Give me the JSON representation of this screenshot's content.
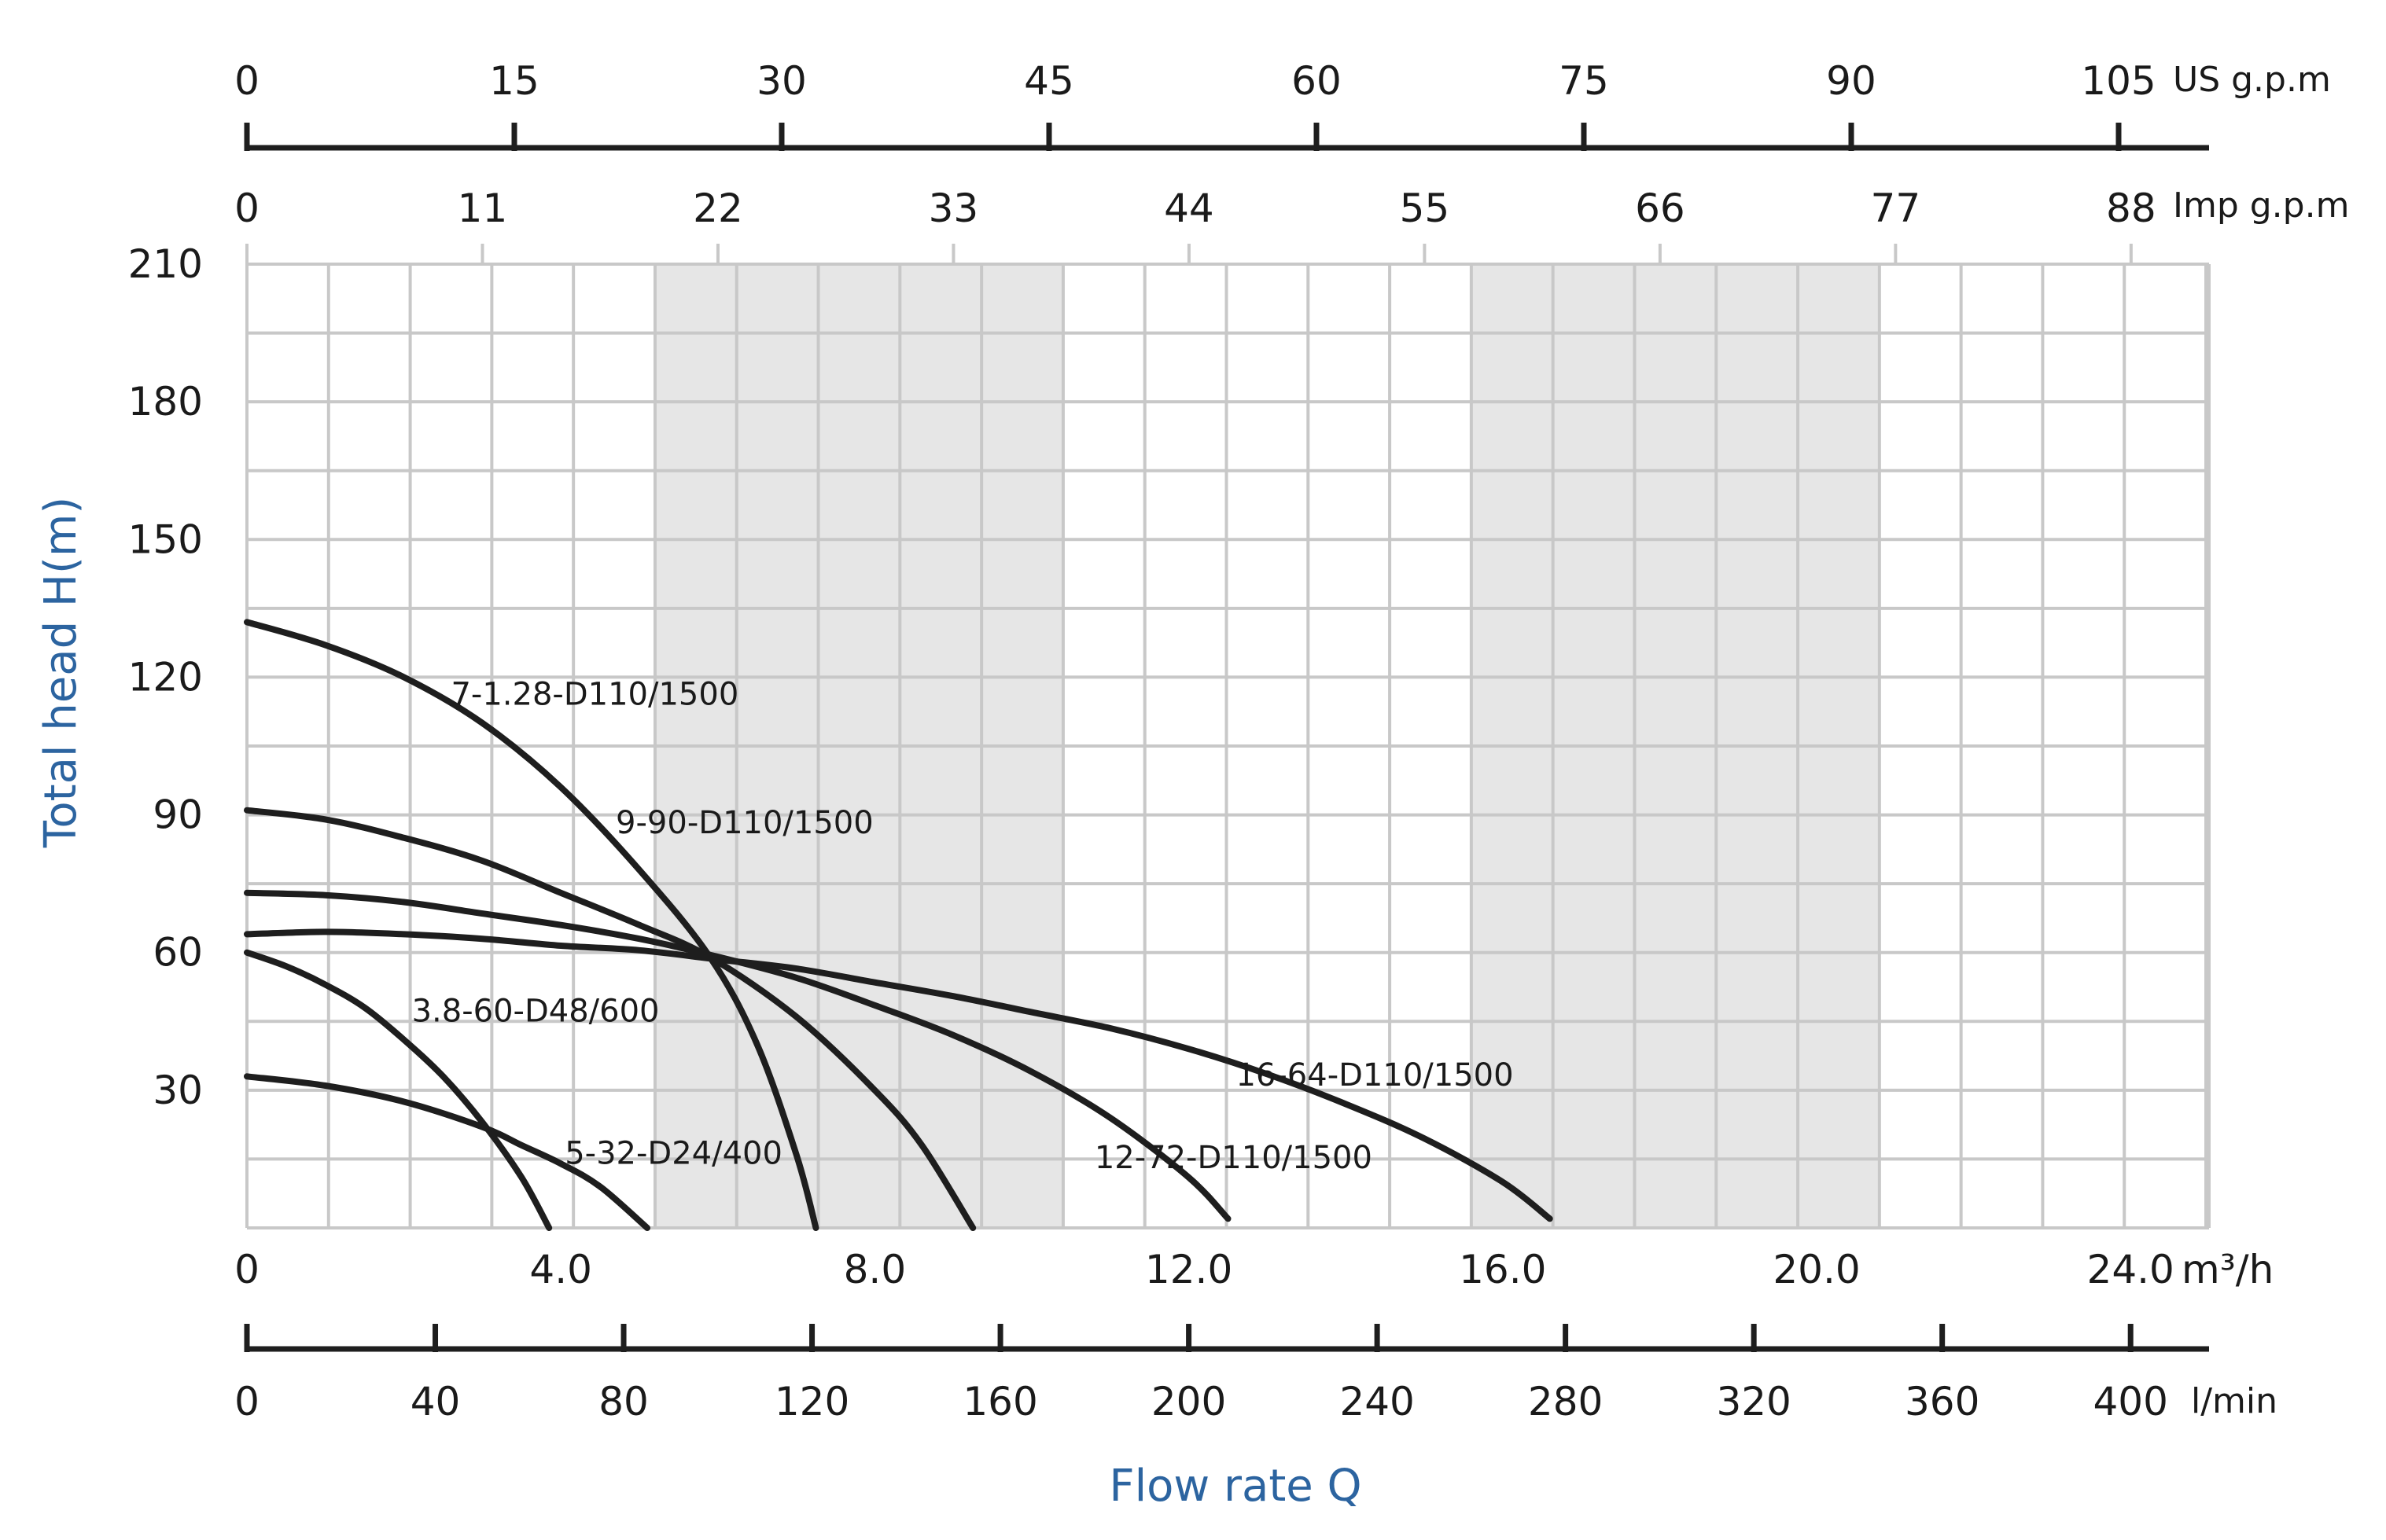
{
  "chart_data": {
    "type": "line",
    "x_unit": "m³/h",
    "xlim": [
      0,
      25
    ],
    "ylim": [
      0,
      210
    ],
    "x_ticks": [
      "0",
      "4.0",
      "8.0",
      "12.0",
      "16.0",
      "20.0",
      "24.0"
    ],
    "x_tick_values": [
      0,
      4,
      8,
      12,
      16,
      20,
      24
    ],
    "y_ticks": [
      "30",
      "60",
      "90",
      "120",
      "150",
      "180",
      "210"
    ],
    "y_tick_values": [
      30,
      60,
      90,
      120,
      150,
      180,
      210
    ],
    "xlabel": "Flow rate Q",
    "ylabel": "Total head H(m)",
    "grid": true,
    "shaded_x_ranges": [
      [
        5.2,
        10.4
      ],
      [
        15.6,
        20.8
      ]
    ],
    "secondary_axes": {
      "us_gpm": {
        "unit": "US g.p.m",
        "ticks": [
          "0",
          "15",
          "30",
          "45",
          "60",
          "75",
          "90",
          "105"
        ],
        "values": [
          0,
          15,
          30,
          45,
          60,
          75,
          90,
          105
        ]
      },
      "imp_gpm": {
        "unit": "Imp g.p.m",
        "ticks": [
          "0",
          "11",
          "22",
          "33",
          "44",
          "55",
          "66",
          "77",
          "88"
        ],
        "values": [
          0,
          11,
          22,
          33,
          44,
          55,
          66,
          77,
          88
        ]
      },
      "l_min": {
        "unit": "l/min",
        "ticks": [
          "0",
          "40",
          "80",
          "120",
          "160",
          "200",
          "240",
          "280",
          "320",
          "360",
          "400"
        ],
        "values": [
          0,
          40,
          80,
          120,
          160,
          200,
          240,
          280,
          320,
          360,
          400
        ]
      }
    },
    "series": [
      {
        "name": "7-1.28-D110/1500",
        "x": [
          0,
          1,
          2,
          3,
          4,
          5,
          5.9,
          6.5,
          7.0,
          7.25
        ],
        "y": [
          132,
          127,
          120,
          110,
          96,
          78,
          59,
          40,
          16,
          0
        ]
      },
      {
        "name": "9-90-D110/1500",
        "x": [
          0,
          1,
          2,
          3,
          4,
          5,
          5.9,
          7,
          8,
          8.6,
          9.25
        ],
        "y": [
          91,
          89,
          85,
          80,
          73,
          66,
          59,
          46,
          30,
          18,
          0
        ]
      },
      {
        "name": "12-72-D110/1500",
        "x": [
          0,
          1,
          2,
          3,
          4,
          5,
          5.9,
          7,
          8,
          9,
          10,
          11,
          12,
          12.5
        ],
        "y": [
          73,
          72.5,
          71,
          68.5,
          66,
          63,
          59.5,
          54.5,
          48.5,
          42,
          34,
          24,
          11,
          2
        ]
      },
      {
        "name": "16-64-D110/1500",
        "x": [
          0,
          1,
          2,
          3,
          4,
          5,
          6,
          7,
          8,
          9,
          10,
          11,
          12,
          13,
          14,
          15,
          16,
          16.6
        ],
        "y": [
          64,
          64.5,
          64,
          63,
          61.5,
          60.5,
          58.5,
          56.5,
          53.5,
          50.5,
          47,
          43.5,
          39,
          33.5,
          27,
          19.5,
          10,
          2
        ]
      },
      {
        "name": "3.8-60-D48/600",
        "x": [
          0,
          0.5,
          1,
          1.5,
          2,
          2.5,
          3,
          3.5,
          3.85
        ],
        "y": [
          60,
          57,
          53,
          48,
          41,
          33,
          23,
          11,
          0
        ]
      },
      {
        "name": "5-32-D24/400",
        "x": [
          0,
          1,
          2,
          3,
          3.5,
          4,
          4.5,
          5.1
        ],
        "y": [
          33,
          31,
          27.5,
          22,
          18,
          14,
          9,
          0
        ]
      }
    ],
    "labels": [
      {
        "series": "7-1.28-D110/1500",
        "x": 2.6,
        "y": 114
      },
      {
        "series": "9-90-D110/1500",
        "x": 4.7,
        "y": 86
      },
      {
        "series": "12-72-D110/1500",
        "x": 10.8,
        "y": 13
      },
      {
        "series": "16-64-D110/1500",
        "x": 12.6,
        "y": 31
      },
      {
        "series": "3.8-60-D48/600",
        "x": 2.1,
        "y": 45
      },
      {
        "series": "5-32-D24/400",
        "x": 4.05,
        "y": 14
      }
    ],
    "colors": {
      "line": "#1e1e1e",
      "grid": "#c8c8c8",
      "shade": "#e6e6e6",
      "axis_title": "#2c64a0"
    }
  }
}
